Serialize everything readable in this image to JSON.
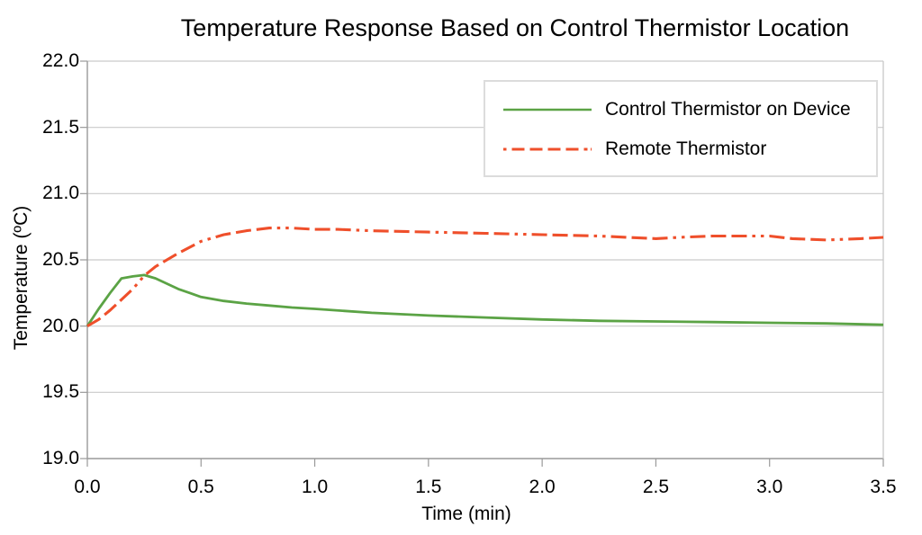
{
  "chart_data": {
    "type": "line",
    "title": "Temperature Response Based on Control Thermistor Location",
    "xlabel": "Time (min)",
    "ylabel": "Temperature (ºC)",
    "xlim": [
      0.0,
      3.5
    ],
    "ylim": [
      19.0,
      22.0
    ],
    "x_ticks": [
      "0.0",
      "0.5",
      "1.0",
      "1.5",
      "2.0",
      "2.5",
      "3.0",
      "3.5"
    ],
    "y_ticks": [
      "19.0",
      "19.5",
      "20.0",
      "20.5",
      "21.0",
      "21.5",
      "22.0"
    ],
    "grid": "horizontal-only",
    "legend_position": "top-right-inside",
    "series": [
      {
        "name": "Control Thermistor on Device",
        "color": "#5ba345",
        "style": "solid",
        "x": [
          0.0,
          0.05,
          0.1,
          0.15,
          0.2,
          0.25,
          0.3,
          0.35,
          0.4,
          0.45,
          0.5,
          0.6,
          0.7,
          0.8,
          0.9,
          1.0,
          1.25,
          1.5,
          1.75,
          2.0,
          2.25,
          2.5,
          2.75,
          3.0,
          3.25,
          3.5
        ],
        "y": [
          20.0,
          20.13,
          20.25,
          20.36,
          20.375,
          20.385,
          20.36,
          20.32,
          20.28,
          20.25,
          20.22,
          20.19,
          20.17,
          20.155,
          20.14,
          20.13,
          20.1,
          20.08,
          20.065,
          20.05,
          20.04,
          20.035,
          20.03,
          20.025,
          20.02,
          20.01
        ]
      },
      {
        "name": "Remote Thermistor",
        "color": "#ef4f2b",
        "style": "dash-dot-dot",
        "x": [
          0.0,
          0.05,
          0.1,
          0.15,
          0.2,
          0.25,
          0.3,
          0.4,
          0.5,
          0.6,
          0.7,
          0.8,
          0.9,
          1.0,
          1.1,
          1.25,
          1.5,
          1.75,
          2.0,
          2.25,
          2.5,
          2.6,
          2.75,
          3.0,
          3.1,
          3.25,
          3.4,
          3.5
        ],
        "y": [
          20.0,
          20.05,
          20.12,
          20.2,
          20.28,
          20.38,
          20.45,
          20.55,
          20.64,
          20.69,
          20.72,
          20.74,
          20.74,
          20.73,
          20.73,
          20.72,
          20.71,
          20.7,
          20.69,
          20.68,
          20.66,
          20.67,
          20.68,
          20.68,
          20.66,
          20.65,
          20.66,
          20.67
        ]
      }
    ],
    "colors": {
      "gridline": "#c9c9c9",
      "axis": "#9a9a9a",
      "right_border": "#c8c8c8",
      "legend_border": "#dcdcdc",
      "text": "#000000",
      "background": "#ffffff"
    }
  }
}
